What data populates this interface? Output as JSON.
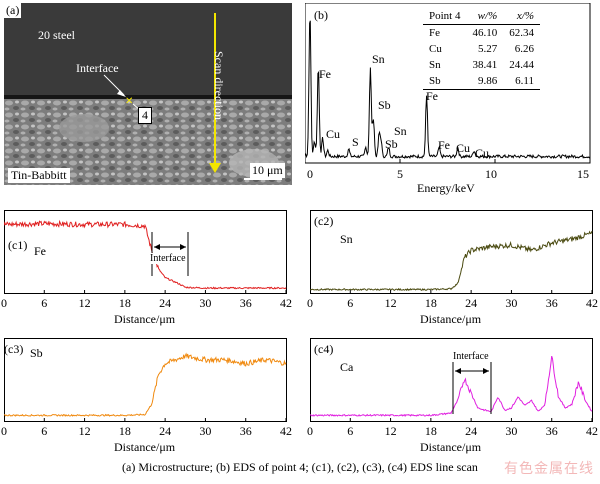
{
  "panel_a": {
    "label": "(a)",
    "steel_label": "20 steel",
    "interface_label": "Interface",
    "point_label": "4",
    "scan_label": "Scan direction",
    "alloy_label": "Tin-Babbitt",
    "scale_label": "10 μm"
  },
  "panel_b": {
    "label": "(b)",
    "peaks": [
      "Fe",
      "Cu",
      "S",
      "Sn",
      "Sb",
      "Sn",
      "Sb",
      "Fe",
      "Fe",
      "Cu",
      "Cu"
    ],
    "xlabel": "Energy/keV",
    "ticks": [
      "0",
      "5",
      "10",
      "15"
    ],
    "table": {
      "headers": [
        "Point 4",
        "w/%",
        "x/%"
      ],
      "rows": [
        [
          "Fe",
          "46.10",
          "62.34"
        ],
        [
          "Cu",
          "5.27",
          "6.26"
        ],
        [
          "Sn",
          "38.41",
          "24.44"
        ],
        [
          "Sb",
          "9.86",
          "6.11"
        ]
      ]
    }
  },
  "line_panels": {
    "c1": {
      "label": "(c1)",
      "element": "Fe",
      "interface_label": "Interface",
      "color": "#e02020"
    },
    "c2": {
      "label": "(c2)",
      "element": "Sn",
      "color": "#4a4a10"
    },
    "c3": {
      "label": "(c3)",
      "element": "Sb",
      "color": "#f08a10"
    },
    "c4": {
      "label": "(c4)",
      "element": "Ca",
      "interface_label": "Interface",
      "color": "#e020e0"
    },
    "xlabel": "Distance/μm",
    "ticks": [
      "0",
      "6",
      "12",
      "18",
      "24",
      "30",
      "36",
      "42"
    ]
  },
  "caption": "(a) Microstructure; (b) EDS of point 4; (c1), (c2), (c3), (c4) EDS line scan",
  "watermark": "有色金属在线",
  "chart_data": [
    {
      "type": "line",
      "title": "(b) EDS of point 4",
      "xlabel": "Energy/keV",
      "ylabel": "",
      "xlim": [
        0,
        15
      ],
      "x": [
        0.0,
        0.26,
        0.5,
        0.7,
        0.93,
        1.2,
        2.3,
        3.2,
        3.44,
        3.6,
        3.9,
        4.0,
        4.4,
        6.4,
        7.06,
        8.04,
        8.9
      ],
      "values": [
        2,
        96,
        10,
        60,
        12,
        4,
        5,
        6,
        58,
        25,
        14,
        10,
        6,
        40,
        6,
        6,
        4
      ]
    },
    {
      "type": "line",
      "title": "(c1) Fe",
      "xlabel": "Distance/μm",
      "xlim": [
        0,
        42
      ],
      "x": [
        0,
        6,
        12,
        18,
        21,
        22,
        23,
        24,
        26,
        27,
        30,
        36,
        42
      ],
      "values": [
        0.9,
        0.91,
        0.9,
        0.9,
        0.88,
        0.55,
        0.3,
        0.18,
        0.1,
        0.05,
        0.04,
        0.04,
        0.04
      ]
    },
    {
      "type": "line",
      "title": "(c2) Sn",
      "xlabel": "Distance/μm",
      "xlim": [
        0,
        42
      ],
      "x": [
        0,
        6,
        12,
        18,
        21,
        22,
        23,
        24,
        27,
        30,
        33,
        36,
        39,
        42
      ],
      "values": [
        0.02,
        0.02,
        0.02,
        0.02,
        0.03,
        0.1,
        0.45,
        0.55,
        0.6,
        0.62,
        0.55,
        0.65,
        0.7,
        0.78
      ]
    },
    {
      "type": "line",
      "title": "(c3) Sb",
      "xlabel": "Distance/μm",
      "xlim": [
        0,
        42
      ],
      "x": [
        0,
        6,
        12,
        18,
        21,
        22,
        23,
        24,
        27,
        30,
        33,
        36,
        39,
        42
      ],
      "values": [
        0.05,
        0.05,
        0.05,
        0.05,
        0.06,
        0.2,
        0.6,
        0.75,
        0.85,
        0.8,
        0.8,
        0.75,
        0.8,
        0.75
      ]
    },
    {
      "type": "line",
      "title": "(c4) Ca",
      "xlabel": "Distance/μm",
      "xlim": [
        0,
        42
      ],
      "x": [
        0,
        6,
        12,
        18,
        21,
        22,
        23,
        24,
        25,
        26,
        27,
        28,
        29,
        30,
        31,
        32,
        33,
        34,
        35,
        36,
        37,
        38,
        39,
        40,
        41,
        42
      ],
      "values": [
        0.05,
        0.05,
        0.05,
        0.05,
        0.08,
        0.25,
        0.55,
        0.35,
        0.15,
        0.12,
        0.1,
        0.3,
        0.12,
        0.15,
        0.3,
        0.18,
        0.25,
        0.1,
        0.2,
        0.85,
        0.3,
        0.15,
        0.2,
        0.5,
        0.25,
        0.1
      ]
    }
  ]
}
